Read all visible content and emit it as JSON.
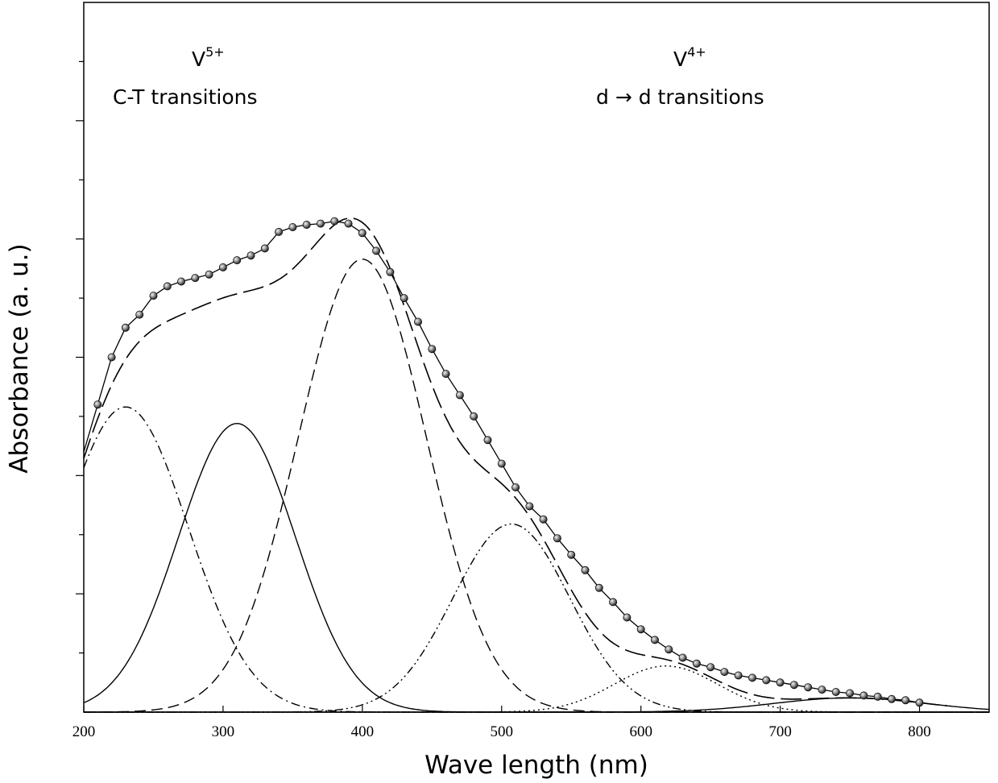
{
  "chart_data": {
    "type": "line",
    "title": "",
    "xlabel": "Wave length (nm)",
    "ylabel": "Absorbance (a. u.)",
    "xlim": [
      200,
      850
    ],
    "ylim": [
      0,
      6
    ],
    "x_ticks": [
      200,
      300,
      400,
      500,
      600,
      700,
      800
    ],
    "y_ticks_labeled": false,
    "grid": false,
    "legend": "none",
    "annotations": [
      {
        "species": "V",
        "charge": "5+",
        "text": "C-T transitions",
        "at_x": 280
      },
      {
        "species": "V",
        "charge": "4+",
        "text": "d → d transitions",
        "at_x": 700
      }
    ],
    "fit_components": [
      {
        "center": 230,
        "amplitude": 2.58,
        "sigma": 45,
        "style": "dash-dot"
      },
      {
        "center": 310,
        "amplitude": 2.44,
        "sigma": 42,
        "style": "solid"
      },
      {
        "center": 400,
        "amplitude": 3.83,
        "sigma": 46,
        "style": "dashed"
      },
      {
        "center": 507,
        "amplitude": 1.59,
        "sigma": 42,
        "style": "dash-dot-dot"
      },
      {
        "center": 618,
        "amplitude": 0.39,
        "sigma": 37,
        "style": "dotted"
      },
      {
        "center": 750,
        "amplitude": 0.12,
        "sigma": 55,
        "style": "solid"
      }
    ],
    "experimental": {
      "x": [
        210,
        220,
        230,
        240,
        250,
        260,
        270,
        280,
        290,
        300,
        310,
        320,
        330,
        340,
        350,
        360,
        370,
        380,
        390,
        400,
        410,
        420,
        430,
        440,
        450,
        460,
        470,
        480,
        490,
        500,
        510,
        520,
        530,
        540,
        550,
        560,
        570,
        580,
        590,
        600,
        610,
        620,
        630,
        640,
        650,
        660,
        670,
        680,
        690,
        700,
        710,
        720,
        730,
        740,
        750,
        760,
        770,
        780,
        790,
        800
      ],
      "y": [
        2.6,
        3.0,
        3.25,
        3.36,
        3.52,
        3.6,
        3.64,
        3.67,
        3.7,
        3.76,
        3.82,
        3.86,
        3.92,
        4.06,
        4.1,
        4.12,
        4.13,
        4.15,
        4.13,
        4.05,
        3.9,
        3.72,
        3.5,
        3.3,
        3.07,
        2.86,
        2.68,
        2.5,
        2.3,
        2.1,
        1.9,
        1.74,
        1.63,
        1.47,
        1.33,
        1.2,
        1.05,
        0.93,
        0.8,
        0.7,
        0.61,
        0.53,
        0.46,
        0.41,
        0.38,
        0.34,
        0.31,
        0.29,
        0.27,
        0.25,
        0.23,
        0.21,
        0.19,
        0.17,
        0.16,
        0.14,
        0.13,
        0.11,
        0.1,
        0.08
      ]
    }
  }
}
